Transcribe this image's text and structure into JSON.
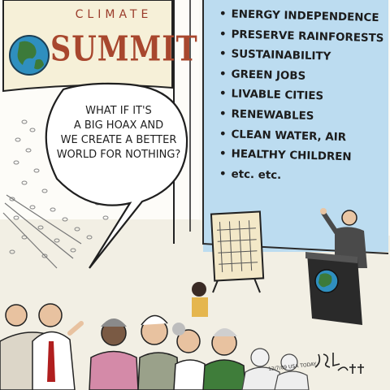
{
  "banner": {
    "top_text": "CLIMATE",
    "main_text": "SUMMIT"
  },
  "screen": {
    "items": [
      "ENERGY INDEPENDENCE",
      "PRESERVE RAINFORESTS",
      "SUSTAINABILITY",
      "GREEN JOBS",
      "LIVABLE CITIES",
      "RENEWABLES",
      "CLEAN WATER, AIR",
      "HEALTHY CHILDREN",
      "etc. etc."
    ]
  },
  "speech_bubble": {
    "lines": [
      "WHAT IF IT'S",
      "A BIG HOAX AND",
      "WE CREATE A BETTER",
      "WORLD FOR NOTHING?"
    ]
  },
  "signature": "JOEL PETT",
  "credit": "12/7/09 USA TODAY",
  "colors": {
    "screen": "#bcdcf0",
    "banner": "#f6f0d8",
    "title_red": "#a8472e",
    "globe_blue": "#2f8fbf",
    "globe_green": "#3c7a3a"
  },
  "icons": [
    "globe-icon",
    "podium-globe-icon",
    "easel-chart"
  ]
}
